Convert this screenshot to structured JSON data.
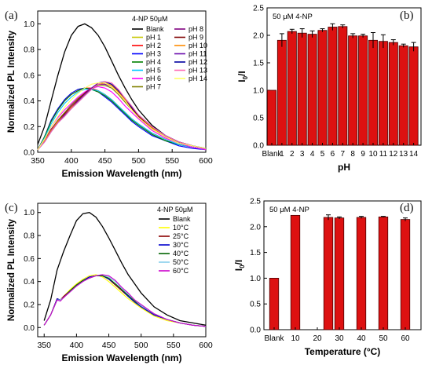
{
  "panels": [
    {
      "id": "a",
      "tag": "(a)"
    },
    {
      "id": "b",
      "tag": "(b)"
    },
    {
      "id": "c",
      "tag": "(c)"
    },
    {
      "id": "d",
      "tag": "(d)"
    }
  ],
  "chart_data": [
    {
      "id": "a",
      "type": "line",
      "title": "",
      "annotation": "4-NP 50μM",
      "xlabel": "Emission Wavelength (nm)",
      "ylabel": "Normalized PL Intensity",
      "xlim": [
        350,
        600
      ],
      "ylim": [
        0,
        1.1
      ],
      "xticks": [
        350,
        400,
        450,
        500,
        550,
        600
      ],
      "yticks": [
        0.0,
        0.2,
        0.4,
        0.6,
        0.8,
        1.0
      ],
      "legend_position": "top-right",
      "x": [
        350,
        360,
        370,
        380,
        390,
        400,
        410,
        420,
        430,
        440,
        450,
        460,
        470,
        480,
        490,
        500,
        520,
        540,
        560,
        580,
        600
      ],
      "series": [
        {
          "name": "Blank",
          "color": "#000000",
          "values": [
            0.06,
            0.2,
            0.4,
            0.6,
            0.78,
            0.91,
            0.98,
            1.0,
            0.97,
            0.91,
            0.82,
            0.71,
            0.6,
            0.5,
            0.41,
            0.33,
            0.21,
            0.13,
            0.08,
            0.05,
            0.03
          ]
        },
        {
          "name": "pH 1",
          "color": "#c8c800",
          "values": [
            0.02,
            0.12,
            0.25,
            0.34,
            0.41,
            0.46,
            0.49,
            0.5,
            0.49,
            0.47,
            0.44,
            0.4,
            0.35,
            0.3,
            0.25,
            0.21,
            0.14,
            0.09,
            0.06,
            0.04,
            0.02
          ]
        },
        {
          "name": "pH 2",
          "color": "#ff0000",
          "values": [
            0.02,
            0.12,
            0.24,
            0.33,
            0.4,
            0.45,
            0.48,
            0.5,
            0.5,
            0.48,
            0.45,
            0.41,
            0.36,
            0.31,
            0.26,
            0.22,
            0.15,
            0.1,
            0.06,
            0.04,
            0.02
          ]
        },
        {
          "name": "pH 3",
          "color": "#0000ff",
          "values": [
            0.02,
            0.12,
            0.25,
            0.34,
            0.41,
            0.46,
            0.49,
            0.5,
            0.49,
            0.47,
            0.43,
            0.39,
            0.34,
            0.29,
            0.24,
            0.2,
            0.13,
            0.09,
            0.05,
            0.03,
            0.02
          ]
        },
        {
          "name": "pH 4",
          "color": "#008000",
          "values": [
            0.02,
            0.12,
            0.24,
            0.33,
            0.4,
            0.45,
            0.48,
            0.5,
            0.49,
            0.47,
            0.44,
            0.4,
            0.35,
            0.3,
            0.25,
            0.21,
            0.14,
            0.09,
            0.06,
            0.04,
            0.02
          ]
        },
        {
          "name": "pH 5",
          "color": "#00c8ff",
          "values": [
            0.02,
            0.11,
            0.22,
            0.31,
            0.38,
            0.43,
            0.47,
            0.49,
            0.49,
            0.48,
            0.45,
            0.41,
            0.36,
            0.31,
            0.26,
            0.22,
            0.15,
            0.1,
            0.06,
            0.04,
            0.02
          ]
        },
        {
          "name": "pH 6",
          "color": "#ff00ff",
          "values": [
            0.02,
            0.1,
            0.2,
            0.27,
            0.33,
            0.38,
            0.43,
            0.47,
            0.5,
            0.51,
            0.5,
            0.47,
            0.42,
            0.36,
            0.31,
            0.26,
            0.17,
            0.11,
            0.07,
            0.04,
            0.02
          ]
        },
        {
          "name": "pH 7",
          "color": "#808000",
          "values": [
            0.02,
            0.09,
            0.18,
            0.25,
            0.31,
            0.37,
            0.42,
            0.46,
            0.5,
            0.52,
            0.52,
            0.5,
            0.45,
            0.39,
            0.33,
            0.27,
            0.18,
            0.12,
            0.07,
            0.05,
            0.03
          ]
        },
        {
          "name": "pH 8",
          "color": "#800080",
          "values": [
            0.02,
            0.09,
            0.18,
            0.24,
            0.3,
            0.36,
            0.41,
            0.46,
            0.5,
            0.53,
            0.53,
            0.51,
            0.46,
            0.4,
            0.34,
            0.28,
            0.19,
            0.12,
            0.08,
            0.05,
            0.03
          ]
        },
        {
          "name": "pH 9",
          "color": "#800000",
          "values": [
            0.02,
            0.09,
            0.17,
            0.24,
            0.3,
            0.35,
            0.41,
            0.46,
            0.5,
            0.53,
            0.54,
            0.52,
            0.47,
            0.41,
            0.34,
            0.28,
            0.19,
            0.12,
            0.08,
            0.05,
            0.03
          ]
        },
        {
          "name": "pH 10",
          "color": "#ff8c00",
          "values": [
            0.02,
            0.09,
            0.17,
            0.24,
            0.29,
            0.35,
            0.4,
            0.45,
            0.5,
            0.53,
            0.54,
            0.52,
            0.47,
            0.41,
            0.35,
            0.29,
            0.19,
            0.12,
            0.08,
            0.05,
            0.03
          ]
        },
        {
          "name": "pH 11",
          "color": "#6a0dad",
          "values": [
            0.02,
            0.08,
            0.16,
            0.23,
            0.29,
            0.34,
            0.4,
            0.45,
            0.5,
            0.54,
            0.55,
            0.53,
            0.48,
            0.42,
            0.35,
            0.29,
            0.2,
            0.13,
            0.08,
            0.05,
            0.03
          ]
        },
        {
          "name": "pH 12",
          "color": "#0000a0",
          "values": [
            0.02,
            0.08,
            0.16,
            0.23,
            0.28,
            0.34,
            0.39,
            0.44,
            0.49,
            0.53,
            0.55,
            0.53,
            0.48,
            0.42,
            0.35,
            0.29,
            0.2,
            0.13,
            0.08,
            0.05,
            0.03
          ]
        },
        {
          "name": "pH 13",
          "color": "#ff69b4",
          "values": [
            0.02,
            0.08,
            0.16,
            0.23,
            0.28,
            0.34,
            0.39,
            0.44,
            0.49,
            0.53,
            0.55,
            0.54,
            0.49,
            0.42,
            0.36,
            0.29,
            0.2,
            0.13,
            0.08,
            0.05,
            0.03
          ]
        },
        {
          "name": "pH 14",
          "color": "#ffff66",
          "values": [
            0.02,
            0.1,
            0.2,
            0.28,
            0.35,
            0.41,
            0.46,
            0.5,
            0.53,
            0.54,
            0.54,
            0.51,
            0.46,
            0.4,
            0.33,
            0.27,
            0.18,
            0.12,
            0.07,
            0.05,
            0.03
          ]
        }
      ]
    },
    {
      "id": "b",
      "type": "bar",
      "title": "",
      "annotation": "50 μM 4-NP",
      "xlabel": "pH",
      "ylabel": "I0/I",
      "ylabel_main": "I",
      "ylabel_sub": "0",
      "ylabel_tail": "/I",
      "ylim": [
        0,
        2.5
      ],
      "yticks": [
        "0.0",
        "0.5",
        "1.0",
        "1.5",
        "2.0",
        "2.5"
      ],
      "bar_color": "#dd1111",
      "categories": [
        "Blank",
        "1",
        "2",
        "3",
        "4",
        "5",
        "6",
        "7",
        "8",
        "9",
        "10",
        "11",
        "12",
        "13",
        "14"
      ],
      "values": [
        1.0,
        1.91,
        2.07,
        2.04,
        2.02,
        2.09,
        2.15,
        2.16,
        1.99,
        1.99,
        1.91,
        1.89,
        1.87,
        1.81,
        1.79
      ],
      "errors": [
        0.0,
        0.12,
        0.04,
        0.08,
        0.06,
        0.03,
        0.06,
        0.03,
        0.04,
        0.03,
        0.14,
        0.12,
        0.05,
        0.03,
        0.08
      ]
    },
    {
      "id": "c",
      "type": "line",
      "title": "",
      "annotation": "4-NP 50μM",
      "xlabel": "Emission Wavelength (nm)",
      "ylabel": "Normalized PL Intensity",
      "xlim": [
        340,
        600
      ],
      "ylim": [
        -0.08,
        1.08
      ],
      "xticks": [
        350,
        400,
        450,
        500,
        550,
        600
      ],
      "yticks": [
        0.0,
        0.2,
        0.4,
        0.6,
        0.8,
        1.0
      ],
      "legend_position": "top-right",
      "x": [
        350,
        360,
        370,
        375,
        380,
        390,
        400,
        410,
        420,
        430,
        440,
        450,
        460,
        470,
        480,
        490,
        500,
        520,
        540,
        560,
        580,
        600
      ],
      "series": [
        {
          "name": "Blank",
          "color": "#000000",
          "values": [
            0.06,
            0.24,
            0.5,
            0.58,
            0.66,
            0.8,
            0.93,
            0.99,
            1.0,
            0.96,
            0.88,
            0.78,
            0.67,
            0.56,
            0.46,
            0.38,
            0.3,
            0.18,
            0.11,
            0.06,
            0.04,
            0.02
          ]
        },
        {
          "name": "10°C",
          "color": "#ffff00",
          "values": [
            0.02,
            0.11,
            0.25,
            0.24,
            0.27,
            0.33,
            0.38,
            0.42,
            0.45,
            0.46,
            0.44,
            0.4,
            0.35,
            0.3,
            0.25,
            0.21,
            0.17,
            0.1,
            0.06,
            0.04,
            0.02,
            0.01
          ]
        },
        {
          "name": "25°C",
          "color": "#8b0000",
          "values": [
            0.02,
            0.11,
            0.25,
            0.24,
            0.27,
            0.32,
            0.37,
            0.41,
            0.44,
            0.45,
            0.45,
            0.42,
            0.37,
            0.32,
            0.27,
            0.22,
            0.18,
            0.11,
            0.07,
            0.04,
            0.02,
            0.01
          ]
        },
        {
          "name": "30°C",
          "color": "#0000cd",
          "values": [
            0.02,
            0.11,
            0.25,
            0.24,
            0.26,
            0.32,
            0.37,
            0.41,
            0.44,
            0.45,
            0.45,
            0.42,
            0.38,
            0.33,
            0.27,
            0.22,
            0.18,
            0.11,
            0.07,
            0.04,
            0.02,
            0.01
          ]
        },
        {
          "name": "40°C",
          "color": "#006400",
          "values": [
            0.02,
            0.11,
            0.24,
            0.24,
            0.26,
            0.32,
            0.37,
            0.41,
            0.43,
            0.45,
            0.45,
            0.43,
            0.38,
            0.33,
            0.28,
            0.23,
            0.19,
            0.12,
            0.07,
            0.04,
            0.02,
            0.01
          ]
        },
        {
          "name": "50°C",
          "color": "#87ceeb",
          "values": [
            0.02,
            0.11,
            0.24,
            0.24,
            0.26,
            0.31,
            0.36,
            0.4,
            0.43,
            0.45,
            0.46,
            0.44,
            0.4,
            0.34,
            0.29,
            0.24,
            0.19,
            0.12,
            0.07,
            0.04,
            0.02,
            0.01
          ]
        },
        {
          "name": "60°C",
          "color": "#cc00cc",
          "values": [
            0.02,
            0.11,
            0.24,
            0.23,
            0.26,
            0.31,
            0.36,
            0.4,
            0.43,
            0.45,
            0.46,
            0.45,
            0.41,
            0.35,
            0.3,
            0.24,
            0.2,
            0.12,
            0.07,
            0.04,
            0.02,
            0.01
          ]
        }
      ]
    },
    {
      "id": "d",
      "type": "bar",
      "title": "",
      "annotation": "50 μM 4-NP",
      "xlabel": "Temperature (°C)",
      "ylabel": "I0/I",
      "ylabel_main": "I",
      "ylabel_sub": "0",
      "ylabel_tail": "/I",
      "ylim": [
        0,
        2.5
      ],
      "yticks": [
        "0.0",
        "0.5",
        "1.0",
        "1.5",
        "2.0",
        "2.5"
      ],
      "bar_color": "#dd1111",
      "xtick_labels": [
        "Blank",
        "10",
        "20",
        "30",
        "40",
        "50",
        "60"
      ],
      "categories": [
        "Blank",
        "10",
        "25",
        "30",
        "40",
        "50",
        "60"
      ],
      "x": [
        0,
        10,
        25,
        30,
        40,
        50,
        60
      ],
      "values": [
        1.0,
        2.22,
        2.18,
        2.17,
        2.18,
        2.19,
        2.14
      ],
      "errors": [
        0.0,
        0.0,
        0.05,
        0.02,
        0.02,
        0.01,
        0.03
      ]
    }
  ]
}
